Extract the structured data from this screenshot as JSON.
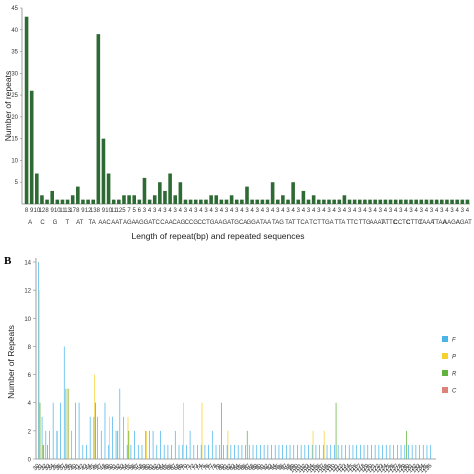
{
  "figure": {
    "panel_b_label": "B"
  },
  "colors": {
    "bar_a": "#2d6a34",
    "series": [
      "#4bb5ea",
      "#f7d12e",
      "#62b23b",
      "#de8278"
    ]
  },
  "chart_data": [
    {
      "type": "bar",
      "ylabel": "Number of repeats",
      "xlabel": "Length of repeat(bp) and repeated sequences",
      "ylim": [
        0,
        45
      ],
      "y_ticks": [
        5,
        10,
        15,
        20,
        25,
        30,
        35,
        40,
        45
      ],
      "categories": [
        "8",
        "9",
        "10",
        "12",
        "8",
        "9",
        "10",
        "11",
        "13",
        "17",
        "8",
        "9",
        "12",
        "13",
        "8",
        "9",
        "10",
        "11",
        "12",
        "5",
        "7",
        "5",
        "6",
        "3",
        "4",
        "3",
        "4",
        "3",
        "4",
        "3",
        "4",
        "3",
        "4",
        "3",
        "4",
        "3",
        "4",
        "3",
        "4",
        "3",
        "4",
        "3",
        "4",
        "3",
        "4",
        "3",
        "4",
        "3",
        "4",
        "3",
        "4",
        "3",
        "4",
        "3",
        "4",
        "3",
        "4",
        "3",
        "4",
        "3",
        "4",
        "3",
        "4",
        "3",
        "4",
        "3",
        "4",
        "3",
        "4",
        "3",
        "4",
        "3",
        "4",
        "3",
        "4",
        "3",
        "4",
        "3",
        "4",
        "3",
        "4",
        "3",
        "4",
        "3",
        "4",
        "3",
        "4"
      ],
      "values": [
        43,
        26,
        7,
        2,
        1,
        3,
        1,
        1,
        1,
        2,
        4,
        1,
        1,
        1,
        39,
        15,
        7,
        1,
        1,
        2,
        2,
        2,
        1,
        6,
        1,
        2,
        5,
        3,
        7,
        2,
        5,
        1,
        1,
        1,
        1,
        1,
        2,
        2,
        1,
        1,
        2,
        1,
        1,
        4,
        1,
        1,
        1,
        1,
        5,
        1,
        2,
        1,
        5,
        1,
        3,
        1,
        2,
        1,
        1,
        1,
        1,
        1,
        2,
        1,
        1,
        1,
        1,
        1,
        1,
        1,
        1,
        1,
        1,
        1,
        1,
        1,
        1,
        1,
        1,
        1,
        1,
        1,
        1,
        1,
        1,
        1,
        1
      ],
      "group_labels": [
        "A",
        "C",
        "G",
        "T",
        "AT",
        "TA",
        "AAC",
        "AAT",
        "AGA",
        "AGG",
        "ATC",
        "CAA",
        "CAG",
        "CCG",
        "CCT",
        "GAA",
        "GAT",
        "GCA",
        "GGA",
        "TAA",
        "TAG",
        "TAT",
        "TCA",
        "TCT",
        "TGA",
        "TTA",
        "TTC",
        "TTG",
        "AAAT",
        "ATTC",
        "CCTC",
        "CTTC",
        "TAAA",
        "TTAA",
        "AAGA",
        "AGAT"
      ],
      "x_tick_labels": [
        "8",
        "9",
        "10",
        "12",
        "8",
        "9",
        "10",
        "11",
        "13",
        "17",
        "8",
        "9",
        "12",
        "13",
        "8",
        "9",
        "10",
        "11",
        "12",
        "5",
        "7",
        "5",
        "6",
        "3",
        "4",
        "3",
        "4",
        "3",
        "4",
        "3",
        "4",
        "3",
        "4",
        "3",
        "4",
        "3",
        "4",
        "3",
        "4",
        "3",
        "4",
        "3",
        "4",
        "3",
        "4",
        "3",
        "4",
        "3",
        "4",
        "3",
        "4",
        "3",
        "4",
        "3",
        "4",
        "3",
        "4",
        "3",
        "4",
        "3",
        "4",
        "3",
        "4",
        "3",
        "4",
        "3",
        "4",
        "3",
        "4",
        "3",
        "4",
        "3",
        "4",
        "3",
        "4",
        "3",
        "4",
        "3",
        "4",
        "3",
        "4",
        "3",
        "4",
        "3",
        "4",
        "3",
        "4"
      ]
    },
    {
      "type": "bar",
      "ylabel": "Number of Repeats",
      "ylim": [
        0,
        14
      ],
      "y_ticks": [
        0,
        2,
        4,
        6,
        8,
        10,
        12,
        14
      ],
      "legend": [
        "F",
        "P",
        "R",
        "C"
      ],
      "legend_position": "right",
      "categories": [
        "30",
        "31",
        "32",
        "33",
        "34",
        "35",
        "36",
        "37",
        "38",
        "39",
        "40",
        "41",
        "42",
        "43",
        "44",
        "45",
        "46",
        "47",
        "48",
        "49",
        "50",
        "51",
        "52",
        "53",
        "54",
        "55",
        "56",
        "57",
        "58",
        "59",
        "60",
        "61",
        "62",
        "63",
        "64",
        "65",
        "66",
        "67",
        "68",
        "69",
        "70",
        "71",
        "72",
        "73",
        "74",
        "75",
        "76",
        "77",
        "78",
        "79",
        "80",
        "81",
        "82",
        "83",
        "84",
        "85",
        "86",
        "87",
        "88",
        "89",
        "90",
        "91",
        "92",
        "93",
        "94",
        "95",
        "96",
        "97",
        "98",
        "99",
        "100",
        "101",
        "102",
        "103",
        "104",
        "105",
        "106",
        "107",
        "108",
        "109",
        "110",
        "111",
        "112",
        "113",
        "114",
        "115",
        "116",
        "117",
        "118",
        "119",
        "120",
        "121",
        "122",
        "123",
        "124",
        "125",
        "126",
        "127",
        "128",
        "129",
        "130",
        "131",
        "132",
        "133",
        "134",
        "135",
        "136"
      ],
      "series": [
        {
          "name": "F",
          "values": [
            14,
            3,
            2,
            2,
            4,
            2,
            4,
            8,
            5,
            2,
            4,
            4,
            1,
            1,
            3,
            3,
            3,
            2,
            4,
            1,
            3,
            2,
            5,
            3,
            1,
            1,
            2,
            1,
            1,
            2,
            2,
            2,
            1,
            2,
            1,
            1,
            1,
            2,
            1,
            1,
            1,
            2,
            1,
            1,
            1,
            1,
            1,
            2,
            1,
            1,
            1,
            1,
            1,
            1,
            1,
            1,
            1,
            1,
            1,
            1,
            1,
            1,
            1,
            1,
            1,
            1,
            1,
            1,
            1,
            1,
            1,
            1,
            1,
            1,
            1,
            1,
            1,
            1,
            1,
            1,
            1,
            1,
            1,
            1,
            1,
            1,
            1,
            1,
            1,
            1,
            1,
            1,
            1,
            1,
            1,
            1,
            1,
            1,
            1,
            1,
            1,
            1,
            1,
            1,
            1,
            1,
            1
          ]
        },
        {
          "name": "P",
          "values": [
            12,
            1,
            0,
            0,
            0,
            2,
            0,
            0,
            5,
            0,
            0,
            0,
            0,
            0,
            0,
            6,
            0,
            0,
            0,
            3,
            0,
            0,
            0,
            0,
            3,
            0,
            0,
            0,
            0,
            2,
            0,
            0,
            0,
            0,
            0,
            0,
            0,
            0,
            0,
            4,
            0,
            0,
            0,
            0,
            4,
            0,
            0,
            0,
            0,
            0,
            0,
            2,
            0,
            0,
            0,
            0,
            0,
            0,
            0,
            0,
            0,
            0,
            0,
            0,
            0,
            0,
            0,
            0,
            0,
            0,
            0,
            0,
            0,
            0,
            2,
            0,
            0,
            2,
            0,
            0,
            0,
            0,
            0,
            0,
            0,
            0,
            0,
            0,
            0,
            0,
            0,
            0,
            0,
            0,
            0,
            0,
            0,
            0,
            0,
            0,
            0,
            0,
            0,
            0,
            0,
            0,
            0
          ]
        },
        {
          "name": "R",
          "values": [
            4,
            1,
            1,
            0,
            0,
            0,
            0,
            5,
            0,
            0,
            0,
            0,
            0,
            0,
            0,
            4,
            0,
            0,
            0,
            0,
            0,
            2,
            0,
            0,
            2,
            0,
            0,
            0,
            0,
            0,
            0,
            0,
            0,
            0,
            0,
            0,
            0,
            0,
            0,
            0,
            0,
            0,
            0,
            0,
            0,
            0,
            0,
            0,
            0,
            4,
            0,
            0,
            0,
            0,
            0,
            0,
            2,
            0,
            0,
            0,
            0,
            0,
            0,
            0,
            0,
            0,
            0,
            0,
            0,
            0,
            0,
            0,
            0,
            0,
            0,
            0,
            0,
            0,
            0,
            0,
            4,
            0,
            0,
            0,
            0,
            0,
            0,
            0,
            0,
            0,
            0,
            0,
            0,
            0,
            0,
            0,
            0,
            0,
            0,
            2,
            0,
            0,
            0,
            0,
            0,
            0,
            0
          ]
        },
        {
          "name": "C",
          "values": [
            0,
            0,
            0,
            0,
            0,
            0,
            0,
            0,
            0,
            0,
            0,
            0,
            0,
            0,
            0,
            0,
            0,
            0,
            0,
            0,
            0,
            0,
            0,
            0,
            0,
            0,
            0,
            0,
            0,
            0,
            0,
            0,
            0,
            0,
            0,
            0,
            0,
            0,
            0,
            0,
            0,
            0,
            0,
            0,
            0,
            0,
            0,
            0,
            0,
            0,
            0,
            0,
            0,
            0,
            0,
            0,
            0,
            0,
            0,
            0,
            0,
            0,
            0,
            0,
            0,
            0,
            0,
            0,
            0,
            0,
            0,
            0,
            0,
            0,
            0,
            0,
            0,
            0,
            0,
            0,
            0,
            0,
            0,
            0,
            0,
            0,
            0,
            0,
            0,
            0,
            0,
            0,
            0,
            0,
            0,
            0,
            0,
            0,
            0,
            0,
            0,
            0,
            0,
            0,
            0,
            0,
            0
          ]
        }
      ],
      "x_tick_labels": [
        "30",
        "31",
        "32",
        "33",
        "34",
        "35",
        "36",
        "37",
        "38",
        "39",
        "40",
        "41",
        "42",
        "43",
        "44",
        "45",
        "46",
        "47",
        "48",
        "49",
        "50",
        "51",
        "52",
        "53",
        "54",
        "55",
        "56",
        "57",
        "58",
        "59",
        "60",
        "61",
        "62",
        "63",
        "64",
        "65",
        "66",
        "67",
        "68",
        "69",
        "70",
        "71",
        "72",
        "73",
        "74",
        "75",
        "76",
        "77",
        "78",
        "79",
        "80",
        "81",
        "82",
        "83",
        "84",
        "85",
        "86",
        "87",
        "88",
        "89",
        "90",
        "91",
        "92",
        "93",
        "94",
        "95",
        "96",
        "97",
        "98",
        "99",
        "100",
        "101",
        "102",
        "103",
        "104",
        "105",
        "106",
        "107",
        "108",
        "109",
        "110",
        "111",
        "112",
        "113",
        "114",
        "115",
        "116",
        "117",
        "118",
        "119",
        "120",
        "121",
        "122",
        "123",
        "124",
        "125",
        "126",
        "127",
        "128",
        "129",
        "130",
        "131",
        "132",
        "133",
        "134",
        "135",
        "136"
      ]
    }
  ]
}
